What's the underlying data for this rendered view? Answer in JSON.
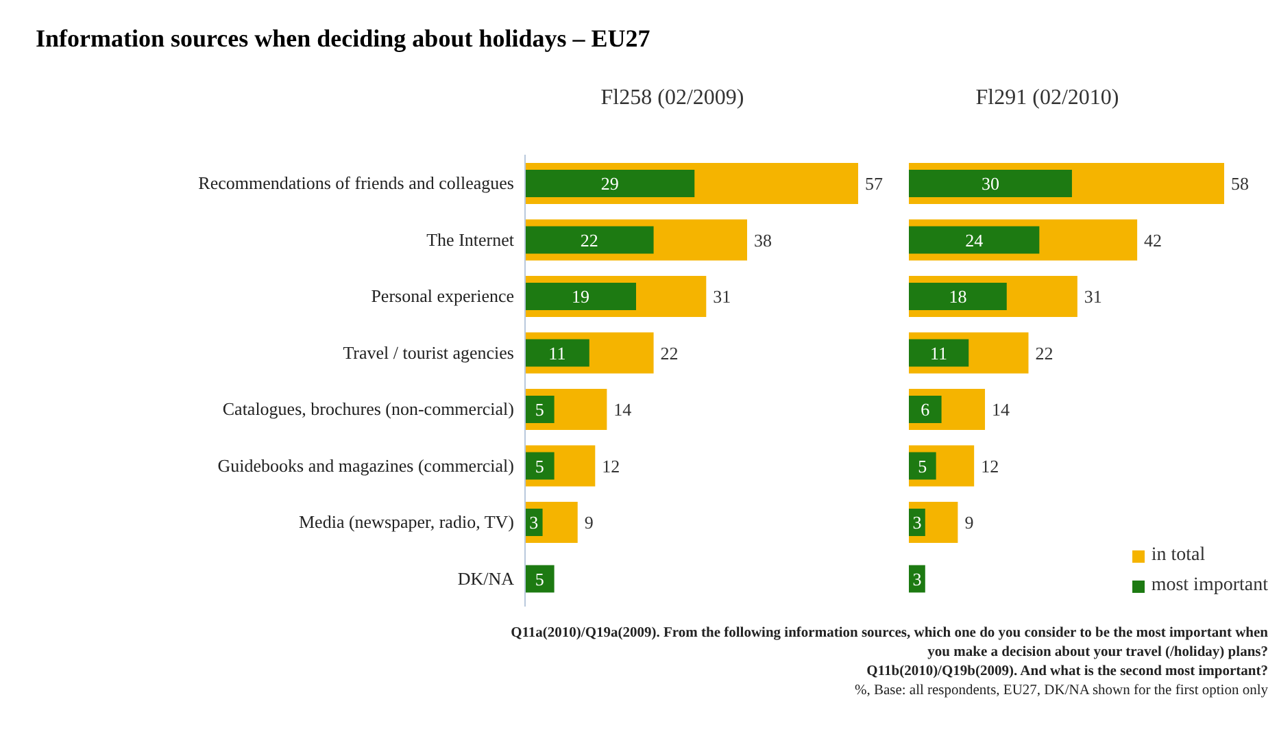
{
  "chart_data": [
    {
      "type": "bar",
      "orientation": "horizontal",
      "title": "Information sources when deciding about holidays – EU27",
      "subtitle": "Fl258 (02/2009)",
      "categories": [
        "Recommendations of friends and colleagues",
        "The Internet",
        "Personal experience",
        "Travel / tourist agencies",
        "Catalogues, brochures (non-commercial)",
        "Guidebooks and magazines (commercial)",
        "Media (newspaper, radio, TV)",
        "DK/NA"
      ],
      "series": [
        {
          "color": "#f5b400",
          "values": [
            57,
            38,
            31,
            22,
            14,
            12,
            9,
            null
          ]
        },
        {
          "color": "#1d7a12",
          "values": [
            29,
            22,
            19,
            11,
            5,
            5,
            3,
            5
          ]
        }
      ],
      "data_labels": true,
      "tick_labels": "y",
      "legend": false
    },
    {
      "type": "bar",
      "orientation": "horizontal",
      "subtitle": "Fl291 (02/2010)",
      "categories": [
        null,
        null,
        null,
        null,
        null,
        null,
        null,
        null
      ],
      "series": [
        {
          "name": "in total",
          "color": "#f5b400",
          "values": [
            58,
            42,
            31,
            22,
            14,
            12,
            9,
            null
          ]
        },
        {
          "name": "most important",
          "color": "#1d7a12",
          "values": [
            30,
            24,
            18,
            11,
            6,
            5,
            3,
            3
          ]
        }
      ],
      "data_labels": true,
      "tick_labels": false,
      "legend": "bottom right",
      "annotations": [
        "Q11a(2010)/Q19a(2009). From the following information sources, which one do you consider to be the most important when you make a decision about your travel (/holiday) plans?",
        "Q11b(2010)/Q19b(2009). And what is the second most important?",
        "%, Base: all respondents, EU27, DK/NA shown for the first option only"
      ]
    }
  ]
}
